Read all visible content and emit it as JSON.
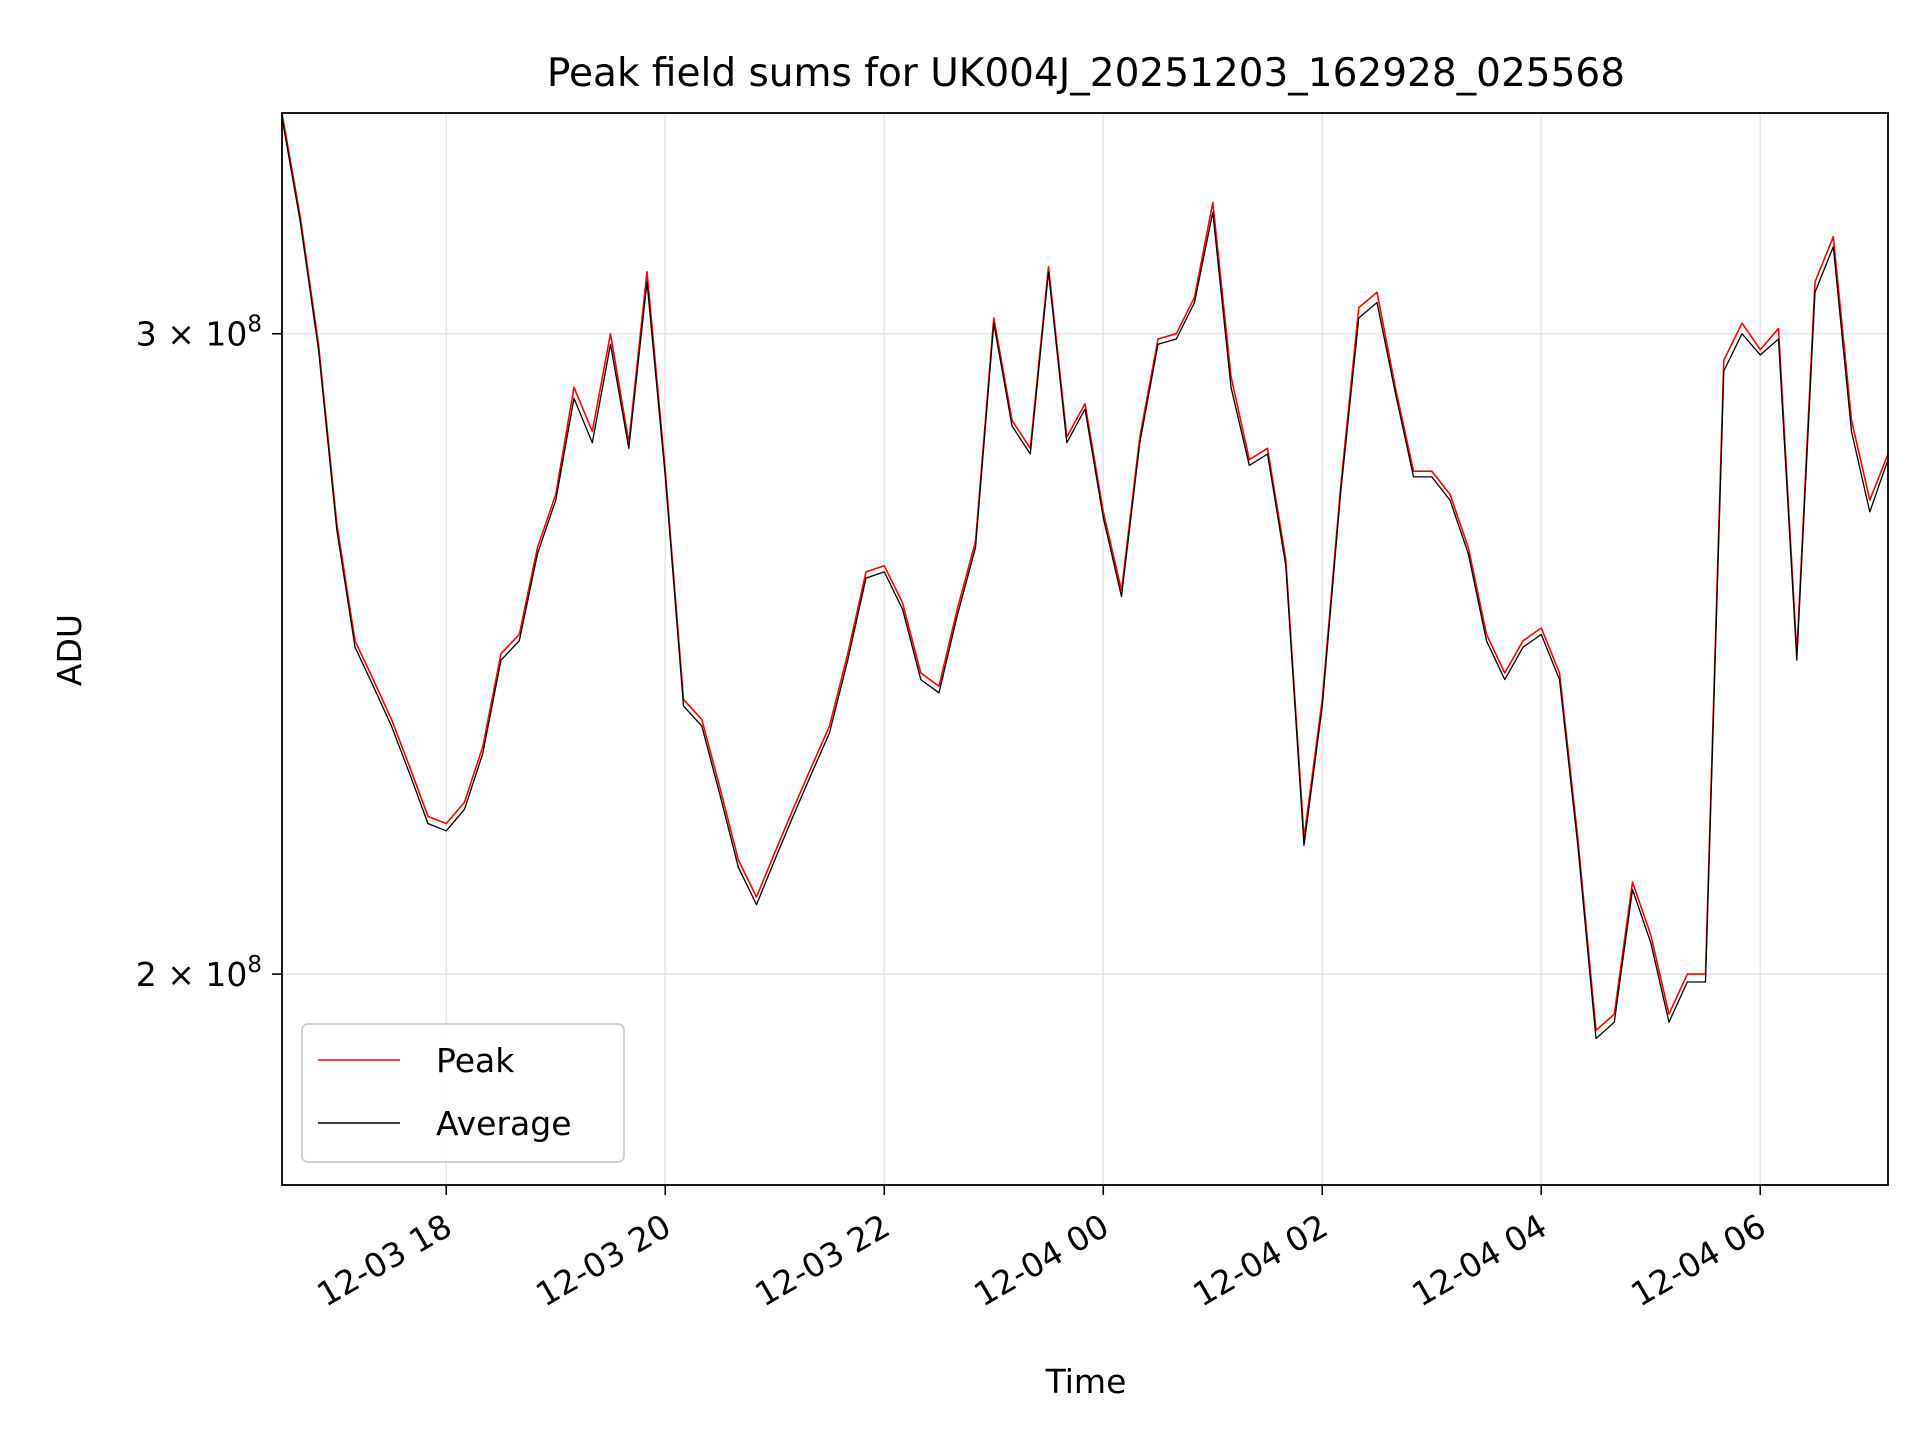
{
  "chart_data": {
    "type": "line",
    "title": "Peak field sums for UK004J_20251203_162928_025568",
    "xlabel": "Time",
    "ylabel": "ADU",
    "y_scale": "log",
    "grid": true,
    "legend_position": "lower-left",
    "xlim": [
      "2025-12-03 16:30",
      "2025-12-04 07:10"
    ],
    "ylim": [
      175000000,
      345000000
    ],
    "x_ticks": [
      {
        "value": "2025-12-03 18:00",
        "label": "12-03 18"
      },
      {
        "value": "2025-12-03 20:00",
        "label": "12-03 20"
      },
      {
        "value": "2025-12-03 22:00",
        "label": "12-03 22"
      },
      {
        "value": "2025-12-04 00:00",
        "label": "12-04 00"
      },
      {
        "value": "2025-12-04 02:00",
        "label": "12-04 02"
      },
      {
        "value": "2025-12-04 04:00",
        "label": "12-04 04"
      },
      {
        "value": "2025-12-04 06:00",
        "label": "12-04 06"
      }
    ],
    "y_ticks": [
      {
        "value": 200000000,
        "label_base": "2 × 10",
        "label_exp": "8"
      },
      {
        "value": 300000000,
        "label_base": "3 × 10",
        "label_exp": "8"
      }
    ],
    "series": [
      {
        "name": "Peak",
        "color": "#ff0000"
      },
      {
        "name": "Average",
        "color": "#000000"
      }
    ],
    "x": [
      "2025-12-03 16:30",
      "2025-12-03 16:40",
      "2025-12-03 16:50",
      "2025-12-03 17:00",
      "2025-12-03 17:10",
      "2025-12-03 17:20",
      "2025-12-03 17:30",
      "2025-12-03 17:40",
      "2025-12-03 17:50",
      "2025-12-03 18:00",
      "2025-12-03 18:10",
      "2025-12-03 18:20",
      "2025-12-03 18:30",
      "2025-12-03 18:40",
      "2025-12-03 18:50",
      "2025-12-03 19:00",
      "2025-12-03 19:10",
      "2025-12-03 19:20",
      "2025-12-03 19:30",
      "2025-12-03 19:40",
      "2025-12-03 19:50",
      "2025-12-03 20:00",
      "2025-12-03 20:10",
      "2025-12-03 20:20",
      "2025-12-03 20:30",
      "2025-12-03 20:40",
      "2025-12-03 20:50",
      "2025-12-03 21:00",
      "2025-12-03 21:10",
      "2025-12-03 21:20",
      "2025-12-03 21:30",
      "2025-12-03 21:40",
      "2025-12-03 21:50",
      "2025-12-03 22:00",
      "2025-12-03 22:10",
      "2025-12-03 22:20",
      "2025-12-03 22:30",
      "2025-12-03 22:40",
      "2025-12-03 22:50",
      "2025-12-03 23:00",
      "2025-12-03 23:10",
      "2025-12-03 23:20",
      "2025-12-03 23:30",
      "2025-12-03 23:40",
      "2025-12-03 23:50",
      "2025-12-04 00:00",
      "2025-12-04 00:10",
      "2025-12-04 00:20",
      "2025-12-04 00:30",
      "2025-12-04 00:40",
      "2025-12-04 00:50",
      "2025-12-04 01:00",
      "2025-12-04 01:10",
      "2025-12-04 01:20",
      "2025-12-04 01:30",
      "2025-12-04 01:40",
      "2025-12-04 01:50",
      "2025-12-04 02:00",
      "2025-12-04 02:10",
      "2025-12-04 02:20",
      "2025-12-04 02:30",
      "2025-12-04 02:40",
      "2025-12-04 02:50",
      "2025-12-04 03:00",
      "2025-12-04 03:10",
      "2025-12-04 03:20",
      "2025-12-04 03:30",
      "2025-12-04 03:40",
      "2025-12-04 03:50",
      "2025-12-04 04:00",
      "2025-12-04 04:10",
      "2025-12-04 04:20",
      "2025-12-04 04:30",
      "2025-12-04 04:40",
      "2025-12-04 04:50",
      "2025-12-04 05:00",
      "2025-12-04 05:10",
      "2025-12-04 05:20",
      "2025-12-04 05:30",
      "2025-12-04 05:40",
      "2025-12-04 05:50",
      "2025-12-04 06:00",
      "2025-12-04 06:10",
      "2025-12-04 06:20",
      "2025-12-04 06:30",
      "2025-12-04 06:40",
      "2025-12-04 06:50",
      "2025-12-04 07:00",
      "2025-12-04 07:10"
    ],
    "peak": [
      345,
      323,
      298,
      266,
      247,
      241,
      235,
      228,
      221,
      220,
      223,
      231,
      245,
      248,
      262,
      271,
      290,
      282,
      300,
      280,
      312,
      275,
      238,
      235,
      225,
      215,
      210,
      216,
      222,
      228,
      234,
      245,
      258,
      259,
      253,
      242,
      240,
      252,
      263,
      303,
      284,
      279,
      313,
      281,
      287,
      268,
      255,
      281,
      299,
      300,
      307,
      326,
      292,
      277,
      279,
      260,
      218,
      238,
      272,
      305,
      308,
      290,
      275,
      275,
      271,
      262,
      248,
      242,
      247,
      249,
      242,
      218,
      193,
      195,
      212,
      205,
      195,
      200,
      200,
      295,
      302,
      297,
      301,
      245,
      310,
      319,
      284,
      270,
      278
    ],
    "average": [
      344,
      322,
      297,
      265,
      246,
      240,
      234,
      227,
      220,
      219,
      222,
      230,
      244,
      247,
      261,
      270,
      288,
      280,
      298,
      279,
      310,
      274,
      237,
      234,
      224,
      214,
      209,
      215,
      221,
      227,
      233,
      244,
      257,
      258,
      252,
      241,
      239,
      251,
      262,
      302,
      283,
      278,
      312,
      280,
      286,
      267,
      254,
      280,
      298,
      299,
      306,
      324,
      290,
      276,
      278,
      259,
      217,
      237,
      271,
      303,
      306,
      289,
      274,
      274,
      270,
      261,
      247,
      241,
      246,
      248,
      241,
      217,
      192,
      194,
      211,
      204,
      194,
      199,
      199,
      293,
      300,
      296,
      299,
      244,
      308,
      317,
      282,
      268,
      277
    ],
    "value_unit": "million ADU"
  }
}
